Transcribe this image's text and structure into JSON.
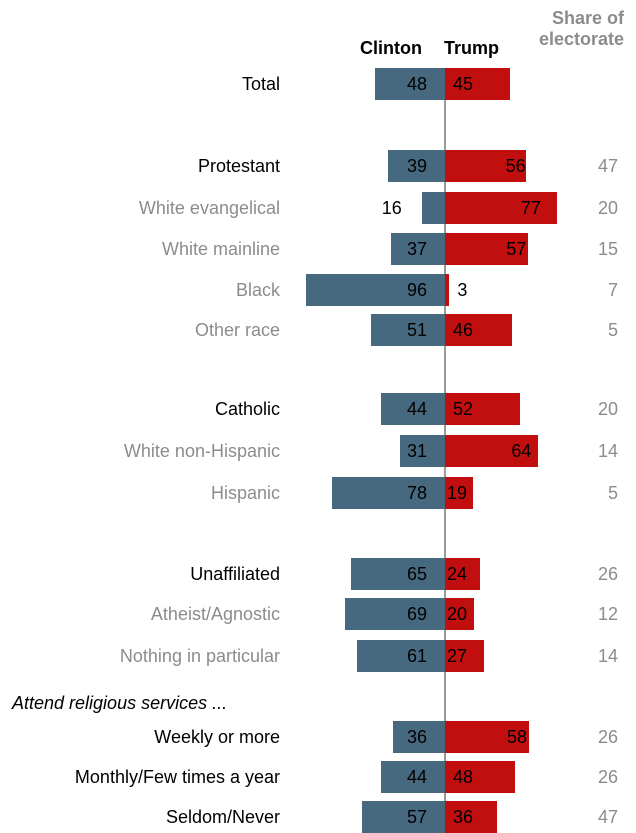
{
  "header": {
    "clinton": "Clinton",
    "trump": "Trump",
    "share_line1": "Share of",
    "share_line2": "electorate"
  },
  "colors": {
    "clinton": "#46697f",
    "trump": "#c10e0e",
    "sub_label": "#8c8c8c"
  },
  "chart_data": {
    "type": "bar",
    "orientation": "diverging-horizontal",
    "series": [
      {
        "name": "Clinton",
        "values": [
          48,
          39,
          16,
          37,
          96,
          51,
          44,
          31,
          78,
          65,
          69,
          61,
          36,
          44,
          57
        ]
      },
      {
        "name": "Trump",
        "values": [
          45,
          56,
          77,
          57,
          3,
          46,
          52,
          64,
          19,
          24,
          20,
          27,
          58,
          48,
          36
        ]
      }
    ],
    "categories": [
      "Total",
      "Protestant",
      "White evangelical",
      "White mainline",
      "Black",
      "Other race",
      "Catholic",
      "White non-Hispanic",
      "Hispanic",
      "Unaffiliated",
      "Atheist/Agnostic",
      "Nothing in particular",
      "Weekly or more",
      "Monthly/Few times a year",
      "Seldom/Never"
    ],
    "share_of_electorate": [
      "",
      "47",
      "20",
      "15",
      "7",
      "5",
      "20",
      "14",
      "5",
      "26",
      "12",
      "14",
      "26",
      "26",
      "47"
    ],
    "group_heading": "Attend religious services ...",
    "rows": [
      {
        "label": "Total",
        "style": "main",
        "clinton": 48,
        "trump": 45,
        "share": ""
      },
      {
        "label": "Protestant",
        "style": "main",
        "clinton": 39,
        "trump": 56,
        "share": "47"
      },
      {
        "label": "White evangelical",
        "style": "sub",
        "clinton": 16,
        "trump": 77,
        "share": "20"
      },
      {
        "label": "White mainline",
        "style": "sub",
        "clinton": 37,
        "trump": 57,
        "share": "15"
      },
      {
        "label": "Black",
        "style": "sub",
        "clinton": 96,
        "trump": 3,
        "share": "7"
      },
      {
        "label": "Other race",
        "style": "sub",
        "clinton": 51,
        "trump": 46,
        "share": "5"
      },
      {
        "label": "Catholic",
        "style": "main",
        "clinton": 44,
        "trump": 52,
        "share": "20"
      },
      {
        "label": "White non-Hispanic",
        "style": "sub",
        "clinton": 31,
        "trump": 64,
        "share": "14"
      },
      {
        "label": "Hispanic",
        "style": "sub",
        "clinton": 78,
        "trump": 19,
        "share": "5"
      },
      {
        "label": "Unaffiliated",
        "style": "main",
        "clinton": 65,
        "trump": 24,
        "share": "26"
      },
      {
        "label": "Atheist/Agnostic",
        "style": "sub",
        "clinton": 69,
        "trump": 20,
        "share": "12"
      },
      {
        "label": "Nothing in particular",
        "style": "sub",
        "clinton": 61,
        "trump": 27,
        "share": "14"
      },
      {
        "label": "Weekly or more",
        "style": "main",
        "clinton": 36,
        "trump": 58,
        "share": "26"
      },
      {
        "label": "Monthly/Few times a year",
        "style": "main",
        "clinton": 44,
        "trump": 48,
        "share": "26"
      },
      {
        "label": "Seldom/Never",
        "style": "main",
        "clinton": 57,
        "trump": 36,
        "share": "47"
      }
    ],
    "xlim": [
      0,
      100
    ],
    "grid": false,
    "legend": "top"
  }
}
